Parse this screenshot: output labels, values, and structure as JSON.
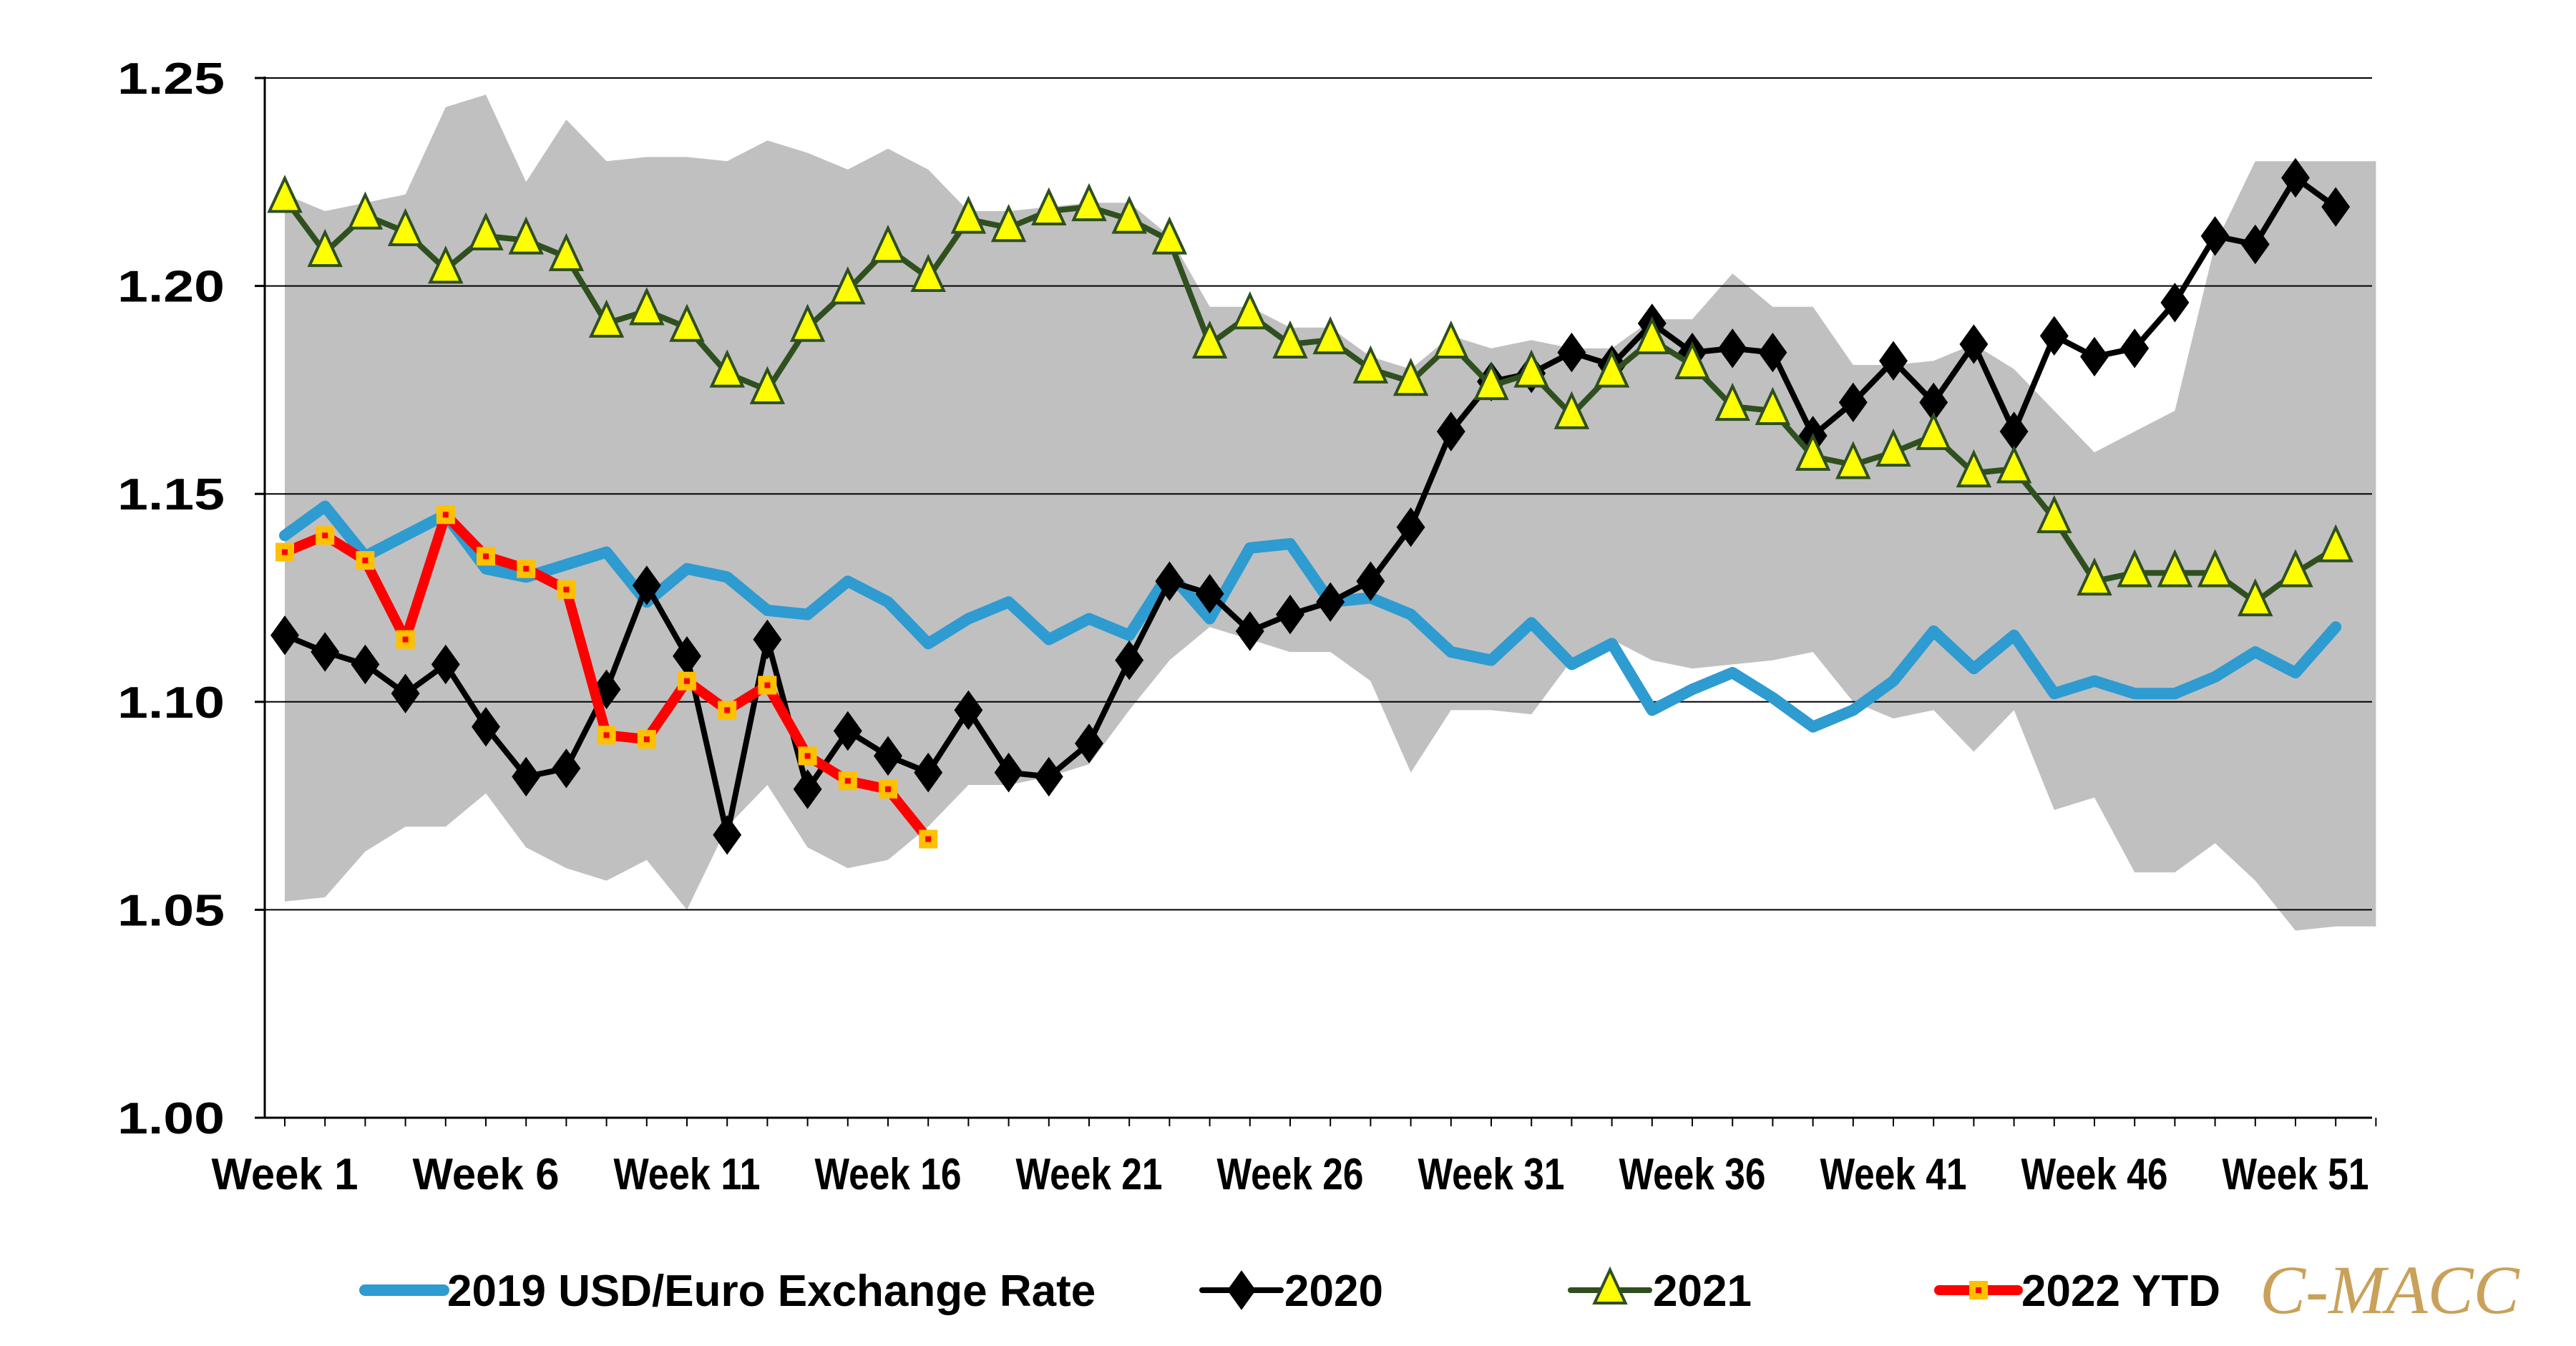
{
  "colors": {
    "band": "#c0c0c0",
    "series_2019": "#2e9bd1",
    "series_2020": "#000000",
    "series_2021": "#2f4f1f",
    "marker_2021": "#ffff00",
    "series_2022": "#ff0000",
    "marker_2022": "#ffc000",
    "grid": "#000000",
    "brand": "#c9a15a"
  },
  "brand": {
    "text": "C-MACC"
  },
  "chart_data": {
    "type": "line",
    "title": "",
    "xlabel": "",
    "ylabel": "",
    "ylim": [
      1.0,
      1.25
    ],
    "y_ticks": [
      "1.00",
      "1.05",
      "1.10",
      "1.15",
      "1.20",
      "1.25"
    ],
    "x_tick_labels": [
      {
        "week": 1,
        "label": "Week 1"
      },
      {
        "week": 6,
        "label": "Week 6"
      },
      {
        "week": 11,
        "label": "Week 11"
      },
      {
        "week": 16,
        "label": "Week 16"
      },
      {
        "week": 21,
        "label": "Week 21"
      },
      {
        "week": 26,
        "label": "Week 26"
      },
      {
        "week": 31,
        "label": "Week 31"
      },
      {
        "week": 36,
        "label": "Week 36"
      },
      {
        "week": 41,
        "label": "Week 41"
      },
      {
        "week": 46,
        "label": "Week 46"
      },
      {
        "week": 51,
        "label": "Week 51"
      }
    ],
    "weeks": 53,
    "range_band": {
      "name": "Historical range",
      "upper": [
        1.222,
        1.218,
        1.22,
        1.222,
        1.243,
        1.246,
        1.225,
        1.24,
        1.23,
        1.231,
        1.231,
        1.23,
        1.235,
        1.232,
        1.228,
        1.233,
        1.228,
        1.218,
        1.218,
        1.219,
        1.22,
        1.22,
        1.212,
        1.195,
        1.195,
        1.19,
        1.19,
        1.183,
        1.18,
        1.188,
        1.185,
        1.187,
        1.185,
        1.185,
        1.192,
        1.192,
        1.203,
        1.195,
        1.195,
        1.181,
        1.181,
        1.182,
        1.186,
        1.18,
        1.17,
        1.16,
        1.165,
        1.17,
        1.21,
        1.23,
        1.23,
        1.23,
        1.23
      ],
      "lower": [
        1.052,
        1.053,
        1.064,
        1.07,
        1.07,
        1.078,
        1.065,
        1.06,
        1.057,
        1.062,
        1.05,
        1.07,
        1.08,
        1.065,
        1.06,
        1.062,
        1.07,
        1.08,
        1.08,
        1.082,
        1.085,
        1.098,
        1.11,
        1.118,
        1.115,
        1.112,
        1.112,
        1.105,
        1.083,
        1.098,
        1.098,
        1.097,
        1.11,
        1.115,
        1.11,
        1.108,
        1.109,
        1.11,
        1.112,
        1.1,
        1.096,
        1.098,
        1.088,
        1.098,
        1.074,
        1.077,
        1.059,
        1.059,
        1.066,
        1.057,
        1.045,
        1.046,
        1.046
      ]
    },
    "series": [
      {
        "name": "2019 USD/Euro Exchange Rate",
        "legend_label": "2019 USD/Euro Exchange Rate",
        "marker": "none",
        "values": [
          1.14,
          1.147,
          1.135,
          1.14,
          1.145,
          1.132,
          1.13,
          1.133,
          1.136,
          1.124,
          1.132,
          1.13,
          1.122,
          1.121,
          1.129,
          1.124,
          1.114,
          1.12,
          1.124,
          1.115,
          1.12,
          1.116,
          1.131,
          1.12,
          1.137,
          1.138,
          1.124,
          1.125,
          1.121,
          1.112,
          1.11,
          1.119,
          1.109,
          1.114,
          1.098,
          1.103,
          1.107,
          1.101,
          1.094,
          1.098,
          1.105,
          1.117,
          1.108,
          1.116,
          1.102,
          1.105,
          1.102,
          1.102,
          1.106,
          1.112,
          1.107,
          1.118,
          null
        ]
      },
      {
        "name": "2020",
        "legend_label": "2020",
        "marker": "diamond",
        "values": [
          1.116,
          1.112,
          1.109,
          1.102,
          1.109,
          1.094,
          1.082,
          1.084,
          1.103,
          1.128,
          1.111,
          1.068,
          1.115,
          1.079,
          1.093,
          1.087,
          1.083,
          1.098,
          1.083,
          1.082,
          1.09,
          1.11,
          1.129,
          1.126,
          1.117,
          1.121,
          1.124,
          1.129,
          1.142,
          1.165,
          1.177,
          1.179,
          1.184,
          1.181,
          1.191,
          1.184,
          1.185,
          1.184,
          1.164,
          1.172,
          1.182,
          1.172,
          1.186,
          1.165,
          1.188,
          1.183,
          1.185,
          1.196,
          1.212,
          1.21,
          1.226,
          1.219,
          null
        ]
      },
      {
        "name": "2021",
        "legend_label": "2021",
        "marker": "triangle",
        "values": [
          1.221,
          1.208,
          1.217,
          1.213,
          1.204,
          1.212,
          1.211,
          1.207,
          1.191,
          1.194,
          1.19,
          1.179,
          1.175,
          1.19,
          1.199,
          1.209,
          1.202,
          1.216,
          1.214,
          1.218,
          1.219,
          1.216,
          1.211,
          1.186,
          1.193,
          1.186,
          1.187,
          1.18,
          1.177,
          1.186,
          1.176,
          1.179,
          1.169,
          1.179,
          1.187,
          1.181,
          1.171,
          1.17,
          1.159,
          1.157,
          1.16,
          1.164,
          1.155,
          1.156,
          1.144,
          1.129,
          1.131,
          1.131,
          1.131,
          1.124,
          1.131,
          1.137,
          null
        ]
      },
      {
        "name": "2022 YTD",
        "legend_label": "2022 YTD",
        "marker": "square",
        "values": [
          1.136,
          1.14,
          1.134,
          1.115,
          1.145,
          1.135,
          1.132,
          1.127,
          1.092,
          1.091,
          1.105,
          1.098,
          1.104,
          1.087,
          1.081,
          1.079,
          1.067,
          null,
          null,
          null,
          null,
          null,
          null,
          null,
          null,
          null,
          null,
          null,
          null,
          null,
          null,
          null,
          null,
          null,
          null,
          null,
          null,
          null,
          null,
          null,
          null,
          null,
          null,
          null,
          null,
          null,
          null,
          null,
          null,
          null,
          null,
          null,
          null
        ]
      }
    ],
    "legend_position": "bottom"
  }
}
